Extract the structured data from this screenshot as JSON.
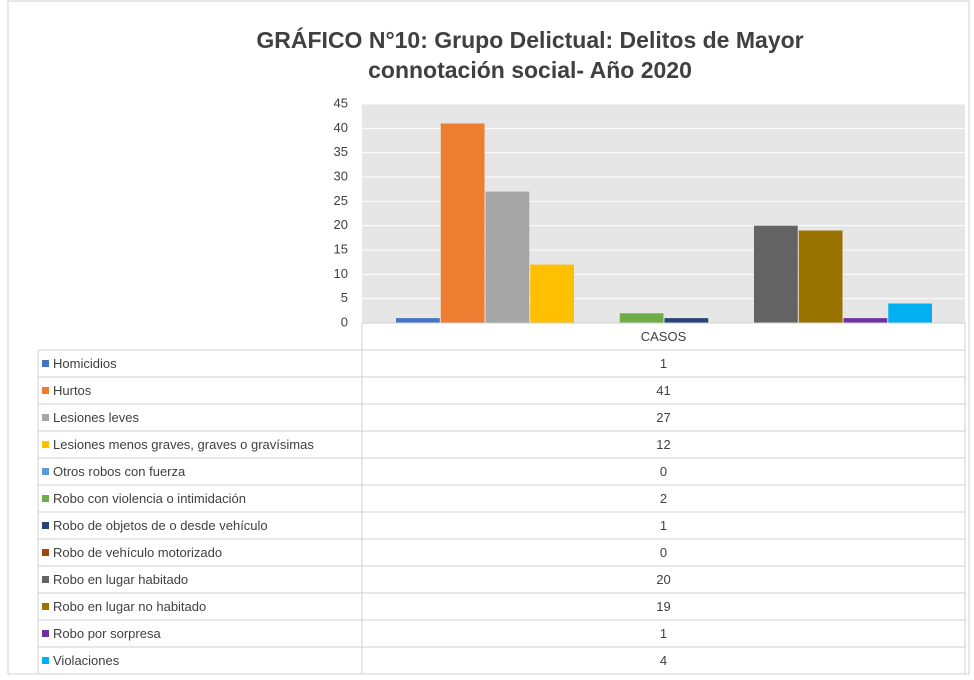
{
  "chart_data": {
    "type": "bar",
    "title": "GRÁFICO N°10: Grupo Delictual: Delitos de Mayor connotación social- Año 2020",
    "categories": [
      "CASOS"
    ],
    "series": [
      {
        "name": "Homicidios",
        "color": "#4472c4",
        "values": [
          1
        ]
      },
      {
        "name": "Hurtos",
        "color": "#ed7d31",
        "values": [
          41
        ]
      },
      {
        "name": "Lesiones leves",
        "color": "#a5a5a5",
        "values": [
          27
        ]
      },
      {
        "name": "Lesiones menos graves, graves o gravísimas",
        "color": "#ffc000",
        "values": [
          12
        ]
      },
      {
        "name": "Otros robos con fuerza",
        "color": "#5b9bd5",
        "values": [
          0
        ]
      },
      {
        "name": "Robo con violencia o intimidación",
        "color": "#70ad47",
        "values": [
          2
        ]
      },
      {
        "name": "Robo de objetos de o desde vehículo",
        "color": "#264478",
        "values": [
          1
        ]
      },
      {
        "name": "Robo de vehículo motorizado",
        "color": "#9e480e",
        "values": [
          0
        ]
      },
      {
        "name": "Robo en lugar habitado",
        "color": "#636363",
        "values": [
          20
        ]
      },
      {
        "name": "Robo en lugar no habitado",
        "color": "#997300",
        "values": [
          19
        ]
      },
      {
        "name": "Robo por sorpresa",
        "color": "#7030a0",
        "values": [
          1
        ]
      },
      {
        "name": "Violaciones",
        "color": "#00b0f0",
        "values": [
          4
        ]
      }
    ],
    "ylim": [
      0,
      45
    ],
    "yticks": [
      0,
      5,
      10,
      15,
      20,
      25,
      30,
      35,
      40,
      45
    ],
    "grid": true
  }
}
